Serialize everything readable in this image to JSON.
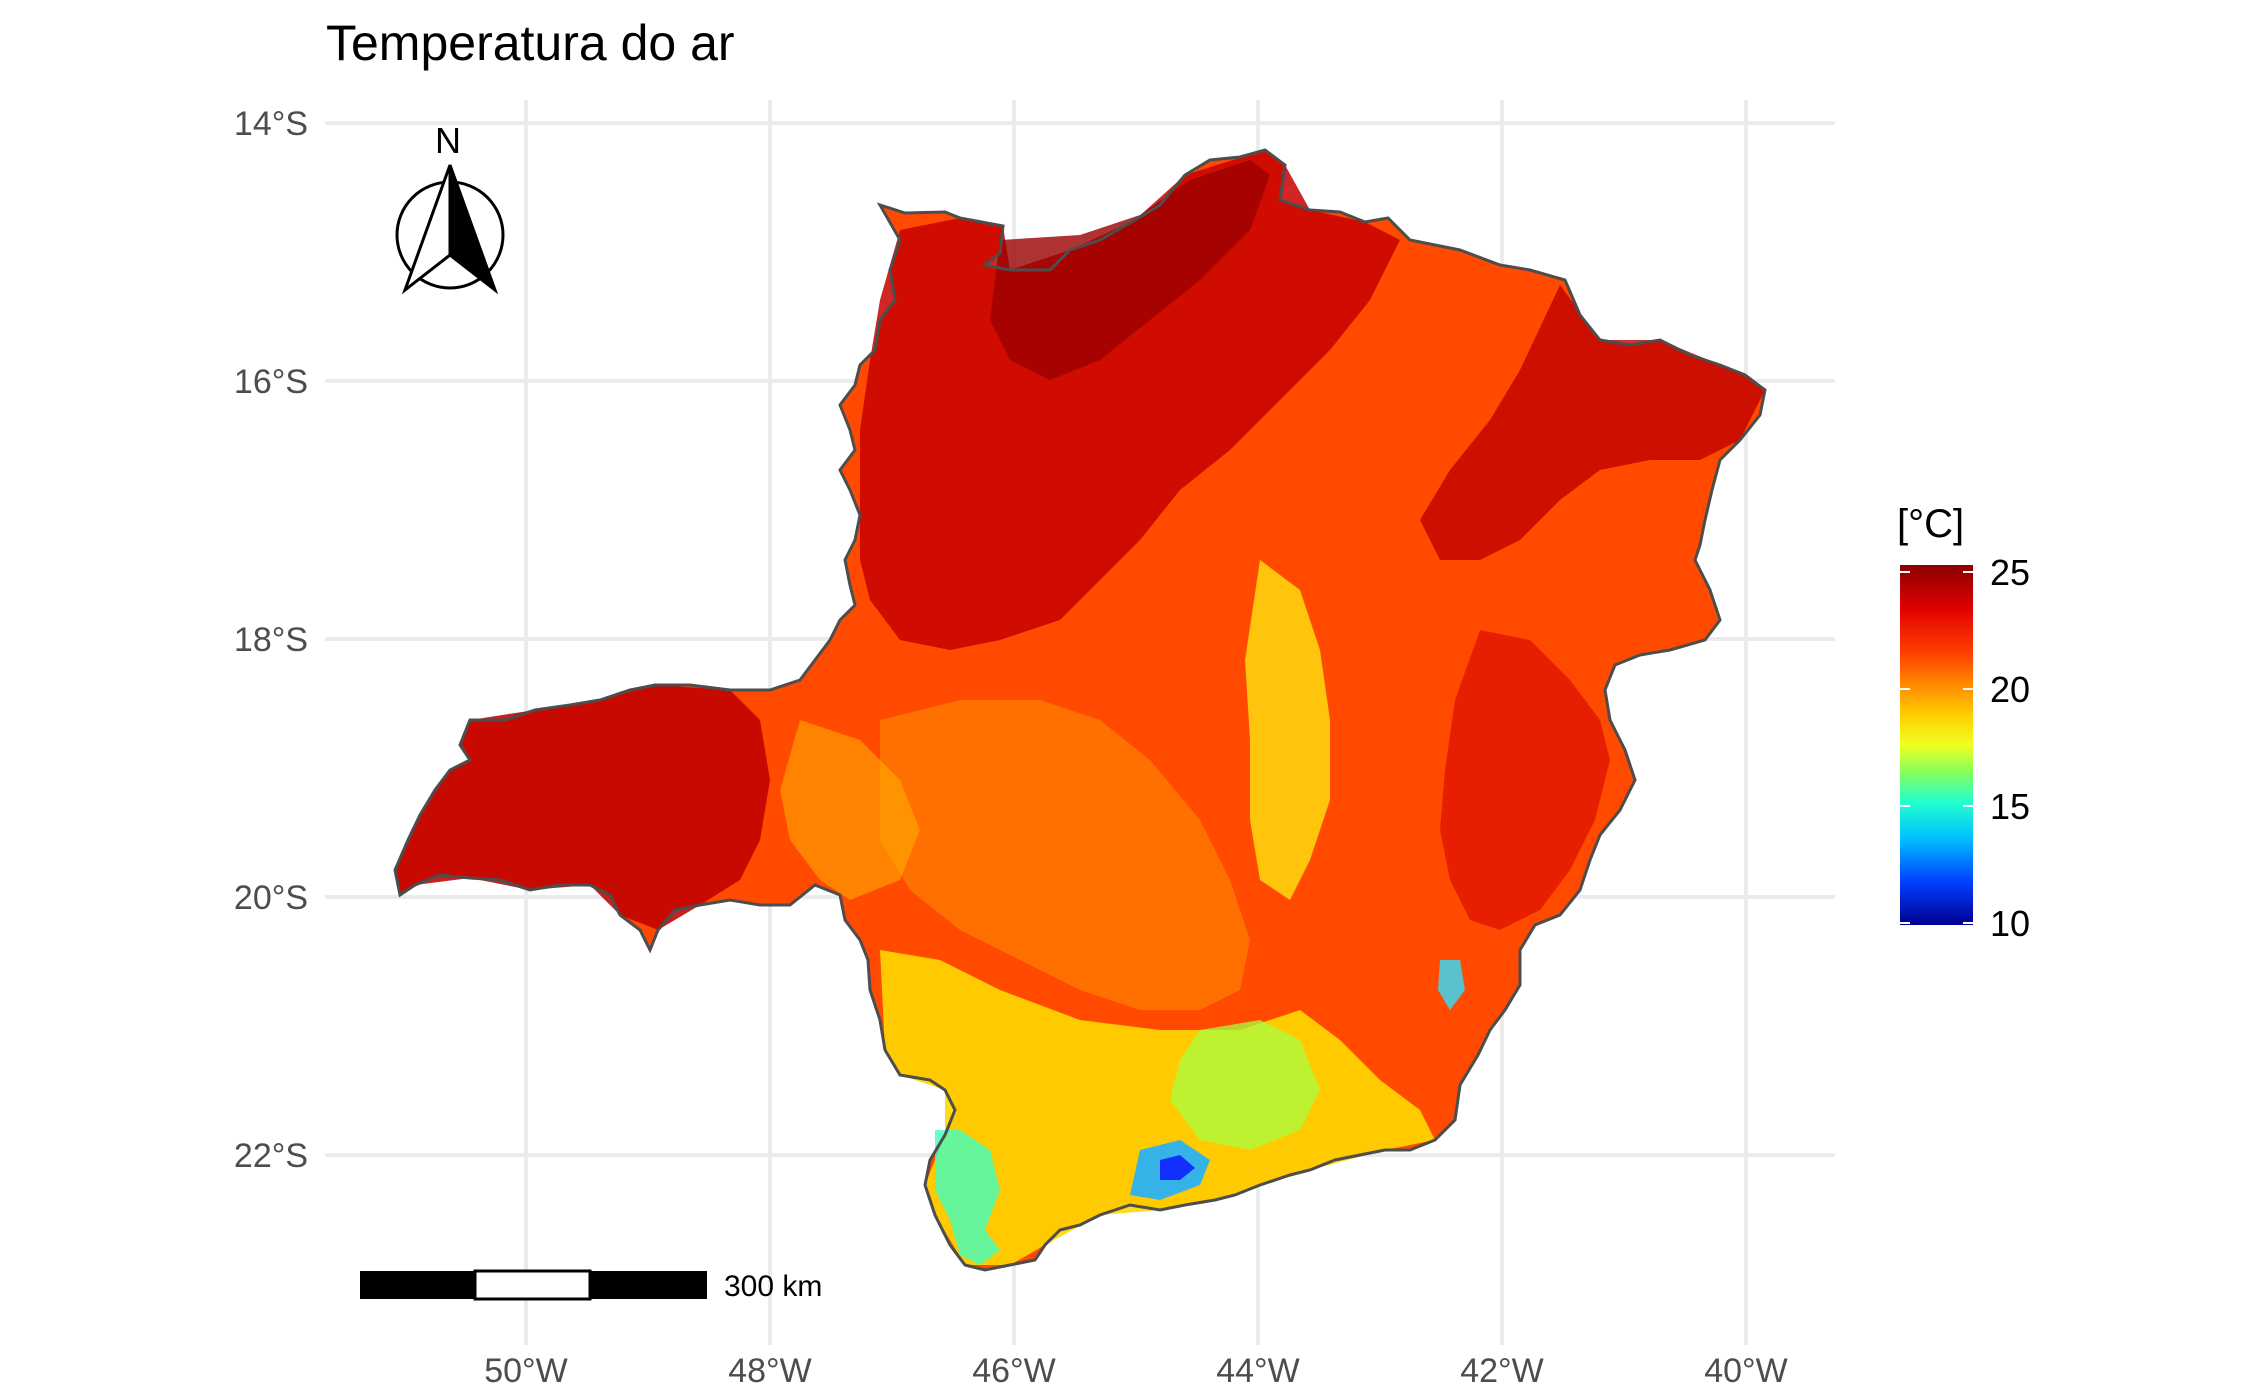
{
  "map": {
    "title": "Temperatura do ar",
    "lat_ticks": [
      "14°S",
      "16°S",
      "18°S",
      "20°S",
      "22°S"
    ],
    "lon_ticks": [
      "50°W",
      "48°W",
      "46°W",
      "44°W",
      "42°W",
      "40°W"
    ],
    "north_arrow": {
      "label": "N",
      "icon": "north-arrow-icon"
    },
    "scale_bar": {
      "label": "300 km"
    }
  },
  "legend": {
    "title": "[°C]",
    "ticks": [
      "25",
      "20",
      "15",
      "10"
    ],
    "colors": [
      "#8b0000",
      "#ff1e00",
      "#ff7a00",
      "#ffd000",
      "#d8ff20",
      "#40ff9a",
      "#00e8ff",
      "#0090ff",
      "#0022ff",
      "#00008f"
    ]
  },
  "colors": {
    "grid": "#ebebeb",
    "outline": "#4d4d4d",
    "hot": "#b50000",
    "warm": "#ff3a00",
    "mild": "#ffa000",
    "cool": "#f0f020",
    "cold": "#40e0ff"
  }
}
